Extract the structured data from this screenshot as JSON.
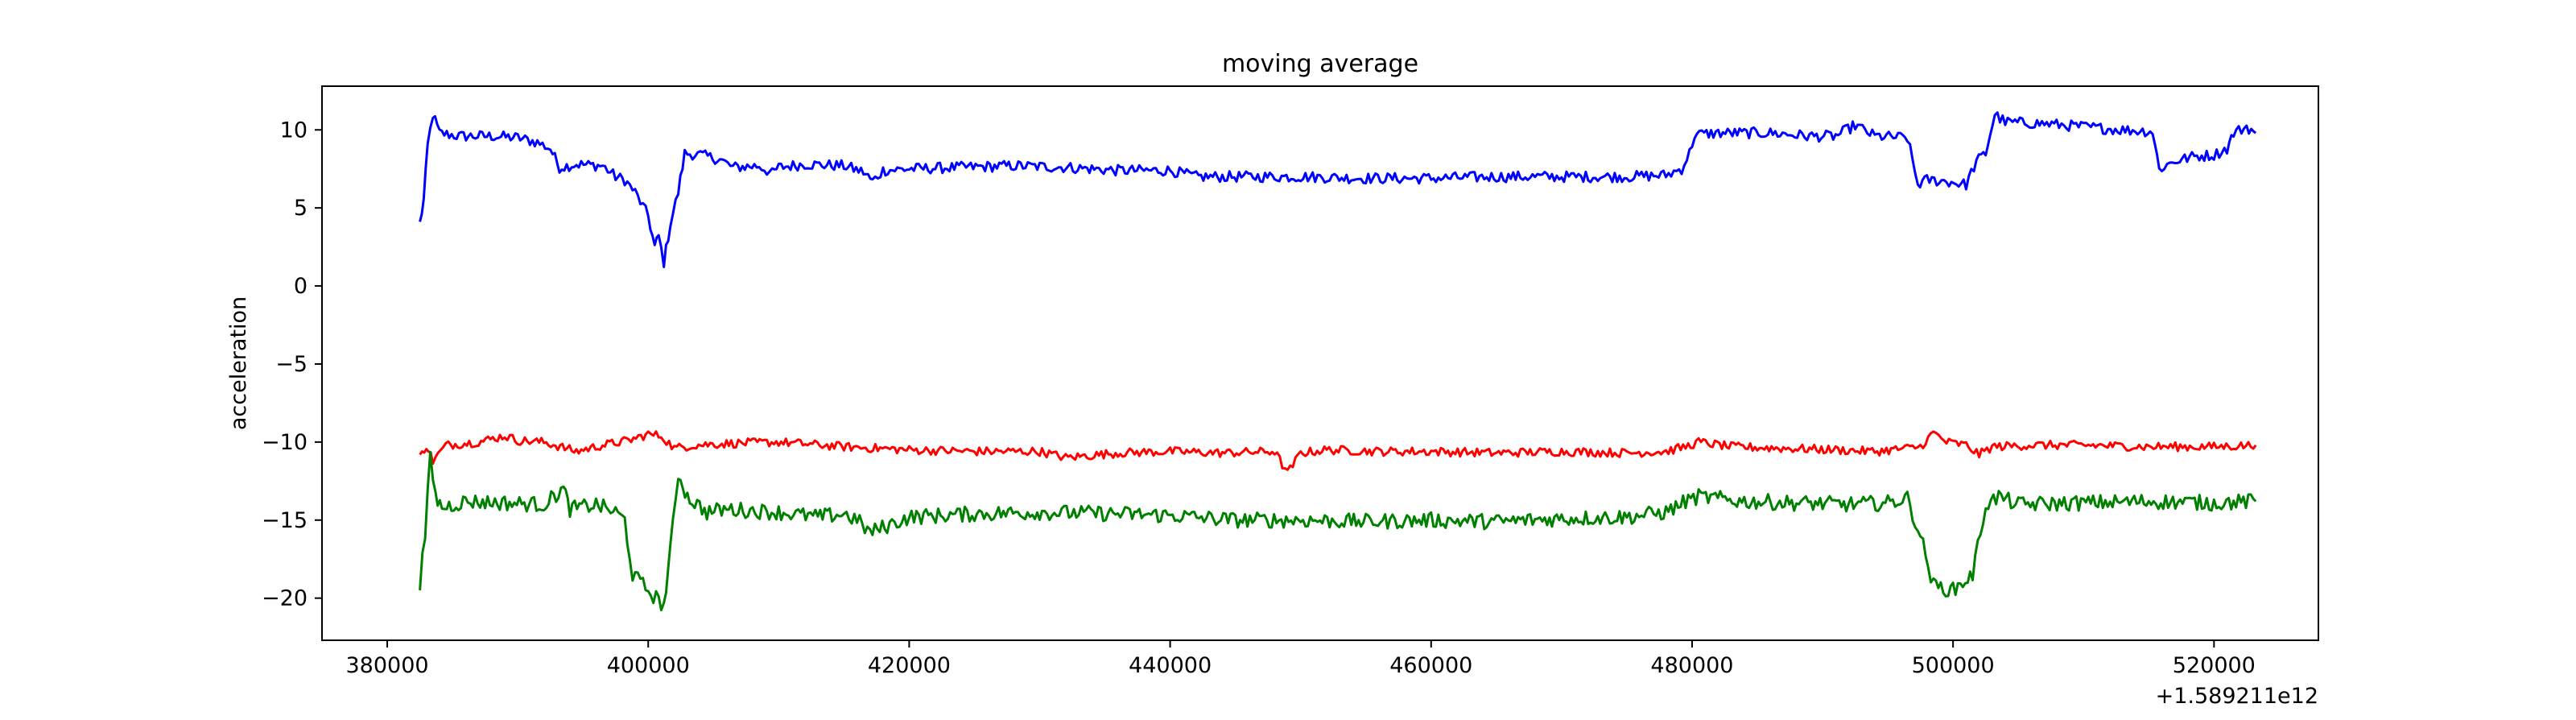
{
  "chart_data": {
    "type": "line",
    "title": "moving average",
    "xlabel": "",
    "ylabel": "acceleration",
    "x_offset_label": "+1.589211e12",
    "xlim": [
      375000,
      528000
    ],
    "ylim": [
      -22.7,
      12.8
    ],
    "x_ticks": [
      380000,
      400000,
      420000,
      440000,
      460000,
      480000,
      500000,
      520000
    ],
    "x_tick_labels": [
      "380000",
      "400000",
      "420000",
      "440000",
      "460000",
      "480000",
      "500000",
      "520000"
    ],
    "y_ticks": [
      10,
      5,
      0,
      -5,
      -10,
      -15,
      -20
    ],
    "y_tick_labels": [
      "10",
      "5",
      "0",
      "−5",
      "−10",
      "−15",
      "−20"
    ],
    "grid": false,
    "legend": "none",
    "series": [
      {
        "color": "#0000ff",
        "x": [
          382500,
          382800,
          383100,
          383500,
          384000,
          385500,
          388000,
          390000,
          391500,
          392500,
          393200,
          394500,
          396500,
          397500,
          398200,
          399000,
          400000,
          400500,
          400800,
          401200,
          401700,
          402300,
          402800,
          404000,
          405500,
          406500,
          408500,
          409500,
          410000,
          412000,
          415000,
          416500,
          417200,
          418000,
          420000,
          424000,
          428000,
          432000,
          436000,
          440000,
          442000,
          446000,
          450000,
          455000,
          460000,
          465000,
          470000,
          475000,
          478000,
          479200,
          479800,
          480200,
          482000,
          486000,
          489000,
          491000,
          492500,
          494000,
          496500,
          497300,
          498000,
          499500,
          501000,
          501800,
          502500,
          503200,
          504000,
          507000,
          510000,
          513000,
          515300,
          515800,
          517000,
          518500,
          520000,
          521000,
          521500,
          522500,
          523200
        ],
        "y": [
          4.0,
          5.5,
          9.0,
          11.0,
          9.8,
          9.6,
          9.6,
          9.5,
          9.2,
          8.8,
          7.6,
          7.8,
          7.7,
          7.0,
          6.8,
          6.0,
          4.5,
          2.5,
          3.2,
          1.5,
          4.0,
          6.0,
          8.5,
          8.4,
          8.1,
          7.6,
          7.7,
          7.2,
          7.6,
          7.8,
          7.7,
          7.3,
          6.7,
          7.4,
          7.5,
          7.6,
          7.7,
          7.6,
          7.4,
          7.4,
          7.0,
          7.0,
          7.0,
          6.9,
          6.9,
          7.0,
          7.0,
          7.0,
          7.1,
          7.5,
          8.5,
          9.7,
          9.8,
          9.8,
          9.6,
          9.6,
          10.3,
          9.6,
          9.5,
          6.5,
          6.8,
          6.7,
          6.5,
          8.0,
          8.5,
          11.0,
          10.5,
          10.4,
          10.2,
          10.0,
          9.9,
          7.5,
          8.0,
          8.3,
          8.4,
          8.8,
          9.8,
          10.2,
          9.8
        ]
      },
      {
        "color": "#ff0000",
        "x": [
          382500,
          383000,
          383500,
          384500,
          387000,
          389000,
          390000,
          392000,
          394500,
          396500,
          398500,
          400000,
          401000,
          402000,
          403500,
          406000,
          410000,
          415000,
          420000,
          425000,
          430000,
          432000,
          436000,
          440000,
          444000,
          448000,
          449000,
          450000,
          452000,
          456000,
          460000,
          465000,
          470000,
          475000,
          478000,
          479500,
          480500,
          483000,
          487000,
          491000,
          494000,
          496500,
          497500,
          498500,
          499500,
          501000,
          502000,
          503000,
          506000,
          510000,
          515000,
          520000,
          523200
        ],
        "y": [
          -11.0,
          -10.2,
          -11.2,
          -10.2,
          -10.0,
          -9.6,
          -9.9,
          -10.0,
          -10.6,
          -10.2,
          -9.9,
          -9.5,
          -9.6,
          -10.4,
          -10.2,
          -10.1,
          -10.0,
          -10.3,
          -10.5,
          -10.6,
          -10.6,
          -11.0,
          -10.7,
          -10.6,
          -10.7,
          -10.6,
          -12.0,
          -10.7,
          -10.5,
          -10.6,
          -10.6,
          -10.7,
          -10.6,
          -10.7,
          -10.6,
          -10.3,
          -10.0,
          -10.3,
          -10.4,
          -10.5,
          -10.6,
          -10.4,
          -10.3,
          -9.4,
          -10.0,
          -10.2,
          -10.8,
          -10.3,
          -10.2,
          -10.2,
          -10.3,
          -10.3,
          -10.2
        ]
      },
      {
        "color": "#008000",
        "x": [
          382500,
          382900,
          383300,
          383700,
          384200,
          386000,
          389000,
          392000,
          393500,
          394000,
          396000,
          397500,
          398200,
          398800,
          400000,
          401200,
          401700,
          402300,
          403000,
          404500,
          406000,
          410000,
          413000,
          415000,
          416000,
          417000,
          420000,
          425000,
          430000,
          436000,
          440000,
          445000,
          450000,
          455000,
          460000,
          465000,
          470000,
          475000,
          478000,
          479500,
          480500,
          484000,
          488000,
          492000,
          495000,
          496500,
          497500,
          498500,
          500000,
          501500,
          502500,
          503500,
          505000,
          510000,
          515000,
          520000,
          523200
        ],
        "y": [
          -19.0,
          -16.0,
          -11.0,
          -13.5,
          -14.2,
          -13.8,
          -13.9,
          -14.0,
          -13.0,
          -14.3,
          -14.0,
          -14.5,
          -15.0,
          -18.5,
          -19.5,
          -20.5,
          -17.0,
          -12.0,
          -13.5,
          -14.5,
          -14.3,
          -14.5,
          -14.8,
          -14.6,
          -15.0,
          -15.8,
          -14.8,
          -14.6,
          -14.5,
          -14.6,
          -14.7,
          -15.0,
          -15.0,
          -15.1,
          -15.0,
          -15.1,
          -14.9,
          -14.8,
          -14.5,
          -13.8,
          -13.5,
          -13.8,
          -13.9,
          -14.0,
          -13.9,
          -13.6,
          -16.0,
          -19.2,
          -19.5,
          -18.5,
          -14.0,
          -13.5,
          -14.0,
          -13.9,
          -13.8,
          -13.9,
          -13.8
        ]
      }
    ]
  }
}
